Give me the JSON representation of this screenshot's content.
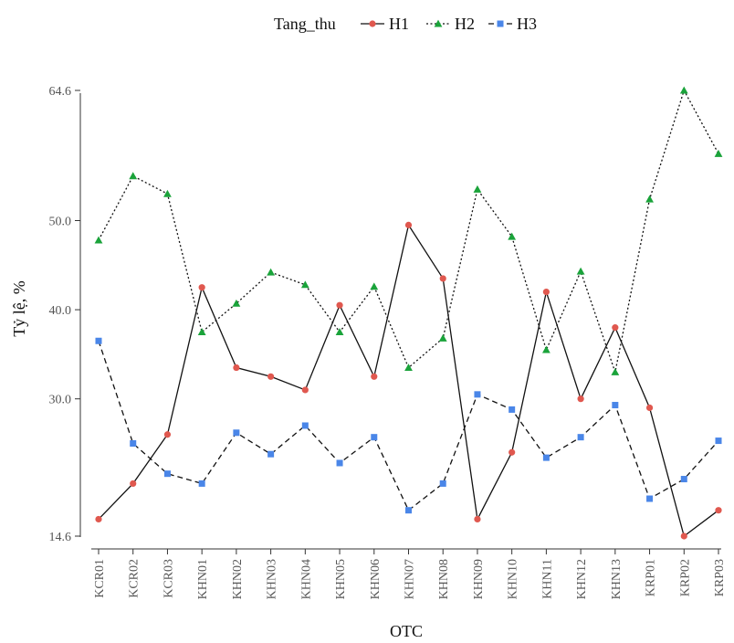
{
  "chart_data": {
    "type": "line",
    "title": "",
    "xlabel": "OTC",
    "ylabel": "Tỷ lệ, %",
    "legend": {
      "title": "Tang_thu",
      "position": "top"
    },
    "categories": [
      "KCR01",
      "KCR02",
      "KCR03",
      "KHN01",
      "KHN02",
      "KHN03",
      "KHN04",
      "KHN05",
      "KHN06",
      "KHN07",
      "KHN08",
      "KHN09",
      "KHN10",
      "KHN11",
      "KHN12",
      "KHN13",
      "KRP01",
      "KRP02",
      "KRP03"
    ],
    "yticks": [
      14.6,
      30.0,
      40.0,
      50.0,
      64.6
    ],
    "ytick_labels": [
      "14.6",
      "30.0",
      "40.0",
      "50.0",
      "64.6"
    ],
    "ylim": [
      13.0,
      65.0
    ],
    "grid": false,
    "series": [
      {
        "name": "H1",
        "color": "#e0584f",
        "marker": "circle",
        "line_style": "solid",
        "values": [
          16.5,
          20.5,
          26.0,
          42.5,
          33.5,
          32.5,
          31.0,
          40.5,
          32.5,
          49.5,
          43.5,
          16.5,
          24.0,
          42.0,
          30.0,
          38.0,
          29.0,
          14.6,
          17.5
        ]
      },
      {
        "name": "H2",
        "color": "#1aa33a",
        "marker": "triangle",
        "line_style": "dotted",
        "values": [
          47.8,
          55.0,
          53.0,
          37.5,
          40.7,
          44.2,
          42.8,
          37.5,
          42.6,
          33.5,
          36.8,
          53.5,
          48.2,
          35.5,
          44.3,
          33.0,
          52.4,
          64.6,
          57.5
        ]
      },
      {
        "name": "H3",
        "color": "#4a86e8",
        "marker": "square",
        "line_style": "dashed",
        "values": [
          36.5,
          25.0,
          21.6,
          20.5,
          26.2,
          23.8,
          27.0,
          22.8,
          25.7,
          17.5,
          20.5,
          30.5,
          28.8,
          23.4,
          25.7,
          29.3,
          18.8,
          21.0,
          25.3
        ]
      }
    ]
  }
}
